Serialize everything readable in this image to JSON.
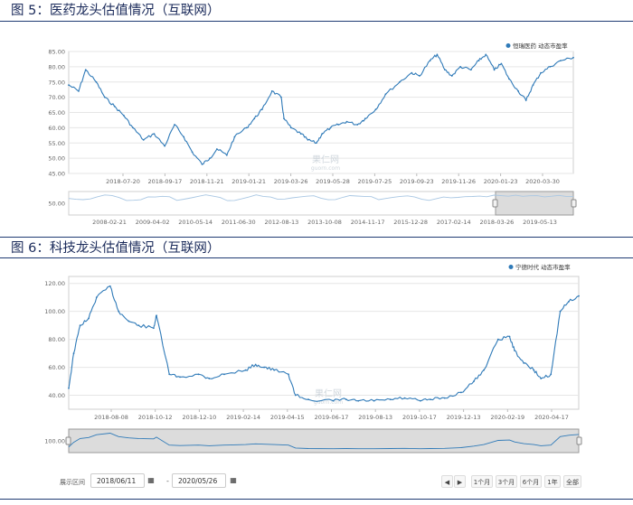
{
  "figures": {
    "fig5_title": "图 5：医药龙头估值情况（互联网）",
    "fig6_title": "图 6：科技龙头估值情况（互联网）"
  },
  "watermark": {
    "cn": "果仁网",
    "url": "guorn.com"
  },
  "controls": {
    "range_label": "展示区间",
    "start_date": "2018/06/11",
    "end_date": "2020/05/26",
    "dash": "-",
    "calendar_icon": "calendar-icon",
    "range_buttons": [
      "1个月",
      "3个月",
      "6个月",
      "1年",
      "全部"
    ]
  },
  "chart_data": [
    {
      "type": "line",
      "title": "",
      "legend": "恒瑞医药 动态市盈率",
      "legend_position": "top-right",
      "ylim": [
        45,
        85
      ],
      "yticks": [
        "45.00",
        "50.00",
        "55.00",
        "60.00",
        "65.00",
        "70.00",
        "75.00",
        "80.00",
        "85.00"
      ],
      "xticks": [
        "2018-07-20",
        "2018-09-17",
        "2018-11-21",
        "2019-01-21",
        "2019-03-26",
        "2019-05-28",
        "2019-07-25",
        "2019-09-23",
        "2019-11-26",
        "2020-01-23",
        "2020-03-30"
      ],
      "grid": "horizontal",
      "color": "#2f7ab8",
      "series": [
        {
          "name": "恒瑞医药 动态市盈率",
          "x": [
            "2018-06-11",
            "2018-06-25",
            "2018-07-05",
            "2018-07-20",
            "2018-08-01",
            "2018-08-15",
            "2018-08-28",
            "2018-09-10",
            "2018-09-25",
            "2018-10-10",
            "2018-10-25",
            "2018-11-08",
            "2018-11-21",
            "2018-12-03",
            "2018-12-17",
            "2018-12-28",
            "2019-01-07",
            "2019-01-21",
            "2019-02-01",
            "2019-02-18",
            "2019-03-01",
            "2019-03-12",
            "2019-03-26",
            "2019-04-08",
            "2019-04-12",
            "2019-04-22",
            "2019-05-06",
            "2019-05-16",
            "2019-05-28",
            "2019-06-05",
            "2019-06-17",
            "2019-06-28",
            "2019-07-10",
            "2019-07-25",
            "2019-08-05",
            "2019-08-20",
            "2019-09-03",
            "2019-09-23",
            "2019-10-10",
            "2019-10-21",
            "2019-11-05",
            "2019-11-15",
            "2019-11-26",
            "2019-12-06",
            "2019-12-18",
            "2020-01-02",
            "2020-01-13",
            "2020-01-23",
            "2020-02-04",
            "2020-02-14",
            "2020-02-25",
            "2020-03-09",
            "2020-03-20",
            "2020-03-30",
            "2020-04-10",
            "2020-04-23",
            "2020-05-08",
            "2020-05-26"
          ],
          "values": [
            74,
            72,
            79,
            75,
            70,
            67,
            64,
            60,
            56,
            58,
            54,
            61,
            57,
            52,
            48,
            50,
            53,
            51,
            57,
            60,
            63,
            66,
            72,
            70,
            63,
            60,
            58,
            56,
            55,
            58,
            60,
            61,
            62,
            61,
            63,
            66,
            71,
            75,
            78,
            77,
            82,
            84,
            79,
            77,
            80,
            79,
            82,
            84,
            79,
            81,
            76,
            72,
            69,
            74,
            78,
            80,
            82,
            83
          ]
        }
      ],
      "navigator": {
        "ylabel": "50.00",
        "xticks": [
          "2008-02-21",
          "2009-04-02",
          "2010-05-14",
          "2011-06-30",
          "2012-08-13",
          "2013-10-08",
          "2014-11-17",
          "2015-12-28",
          "2017-02-14",
          "2018-03-26",
          "2019-05-13"
        ]
      }
    },
    {
      "type": "line",
      "title": "",
      "legend": "宁德时代 动态市盈率",
      "legend_position": "top-right",
      "ylim": [
        30,
        125
      ],
      "yticks": [
        "40.00",
        "60.00",
        "80.00",
        "100.00",
        "120.00"
      ],
      "xticks": [
        "2018-08-08",
        "2018-10-12",
        "2018-12-10",
        "2019-02-14",
        "2019-04-15",
        "2019-06-17",
        "2019-08-13",
        "2019-10-17",
        "2019-12-13",
        "2020-02-19",
        "2020-04-17"
      ],
      "grid": "horizontal",
      "color": "#2f7ab8",
      "series": [
        {
          "name": "宁德时代 动态市盈率",
          "x": [
            "2018-06-11",
            "2018-06-18",
            "2018-06-27",
            "2018-07-09",
            "2018-07-20",
            "2018-08-08",
            "2018-08-20",
            "2018-09-03",
            "2018-09-17",
            "2018-10-08",
            "2018-10-12",
            "2018-10-30",
            "2018-11-14",
            "2018-12-10",
            "2018-12-25",
            "2019-01-15",
            "2019-02-14",
            "2019-02-28",
            "2019-03-12",
            "2019-03-26",
            "2019-04-15",
            "2019-04-25",
            "2019-05-13",
            "2019-06-17",
            "2019-07-05",
            "2019-07-22",
            "2019-08-13",
            "2019-09-05",
            "2019-09-25",
            "2019-10-17",
            "2019-10-31",
            "2019-11-20",
            "2019-12-13",
            "2019-12-31",
            "2020-01-14",
            "2020-02-03",
            "2020-02-19",
            "2020-02-26",
            "2020-03-10",
            "2020-03-24",
            "2020-04-03",
            "2020-04-17",
            "2020-04-30",
            "2020-05-12",
            "2020-05-26"
          ],
          "values": [
            45,
            70,
            90,
            95,
            110,
            118,
            100,
            93,
            90,
            88,
            97,
            55,
            53,
            55,
            52,
            55,
            58,
            62,
            60,
            58,
            55,
            40,
            37,
            36,
            37,
            36,
            36,
            37,
            38,
            36,
            37,
            38,
            42,
            50,
            58,
            80,
            82,
            72,
            63,
            58,
            52,
            55,
            100,
            107,
            111
          ]
        }
      ],
      "navigator": {
        "ylabel": "100.00"
      }
    }
  ]
}
